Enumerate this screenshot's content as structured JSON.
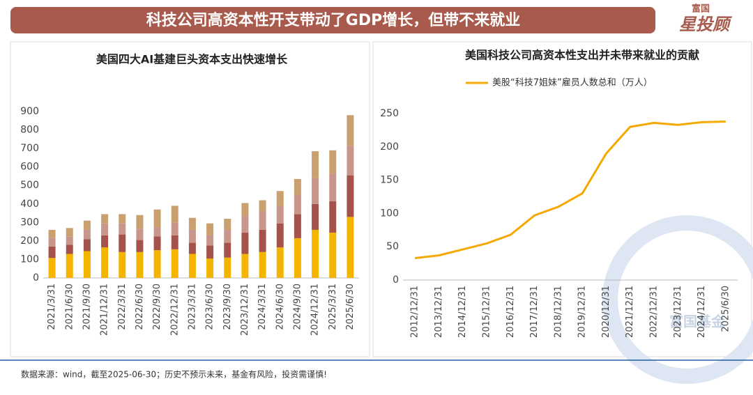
{
  "header": {
    "title": "科技公司高资本性开支带动了GDP增长，但带不来就业",
    "logo_top": "富国",
    "logo_main": "星投顾"
  },
  "chart_data": [
    {
      "type": "stacked_bar",
      "title": "美国四大AI基建巨头资本支出快速增长",
      "categories": [
        "2021/3/31",
        "2021/6/30",
        "2021/9/30",
        "2021/12/31",
        "2022/3/31",
        "2022/6/30",
        "2022/9/30",
        "2022/12/31",
        "2023/3/31",
        "2023/6/30",
        "2023/9/30",
        "2023/12/31",
        "2024/3/31",
        "2024/6/30",
        "2024/9/30",
        "2024/12/31",
        "2025/3/31",
        "2025/6/30"
      ],
      "series": [
        {
          "color": "#f5b400",
          "values": [
            108,
            130,
            145,
            165,
            140,
            140,
            150,
            155,
            130,
            105,
            110,
            130,
            140,
            165,
            215,
            260,
            245,
            330
          ]
        },
        {
          "color": "#a5524a",
          "values": [
            62,
            50,
            65,
            65,
            95,
            65,
            75,
            75,
            60,
            70,
            80,
            115,
            120,
            130,
            130,
            140,
            170,
            225
          ]
        },
        {
          "color": "#c9968c",
          "values": [
            48,
            45,
            50,
            65,
            60,
            60,
            50,
            70,
            70,
            55,
            70,
            90,
            100,
            95,
            105,
            140,
            150,
            160
          ]
        },
        {
          "color": "#c9a06e",
          "values": [
            42,
            45,
            50,
            50,
            50,
            75,
            95,
            90,
            65,
            65,
            60,
            70,
            60,
            80,
            85,
            145,
            125,
            165
          ]
        }
      ],
      "ylim": [
        0,
        900
      ],
      "yticks": [
        0,
        100,
        200,
        300,
        400,
        500,
        600,
        700,
        800,
        900
      ]
    },
    {
      "type": "line",
      "title": "美国科技公司高资本性支出并未带来就业的贡献",
      "categories": [
        "2012/12/31",
        "2013/12/31",
        "2014/12/31",
        "2015/12/31",
        "2016/12/31",
        "2017/12/31",
        "2018/12/31",
        "2019/12/31",
        "2020/12/31",
        "2021/12/31",
        "2022/12/31",
        "2023/12/31",
        "2024/12/31",
        "2025/6/30"
      ],
      "series": [
        {
          "name": "美股“科技7姐妹”雇员人数总和（万人）",
          "color": "#f5a800",
          "values": [
            33,
            37,
            46,
            55,
            68,
            97,
            110,
            130,
            190,
            230,
            236,
            233,
            237,
            238
          ]
        }
      ],
      "ylim": [
        0,
        250
      ],
      "yticks": [
        0,
        50,
        100,
        150,
        200,
        250
      ]
    }
  ],
  "watermark": "富国基金",
  "footer": "数据来源：wind，截至2025-06-30；历史不预示未来，基金有风险，投资需谨慎!"
}
